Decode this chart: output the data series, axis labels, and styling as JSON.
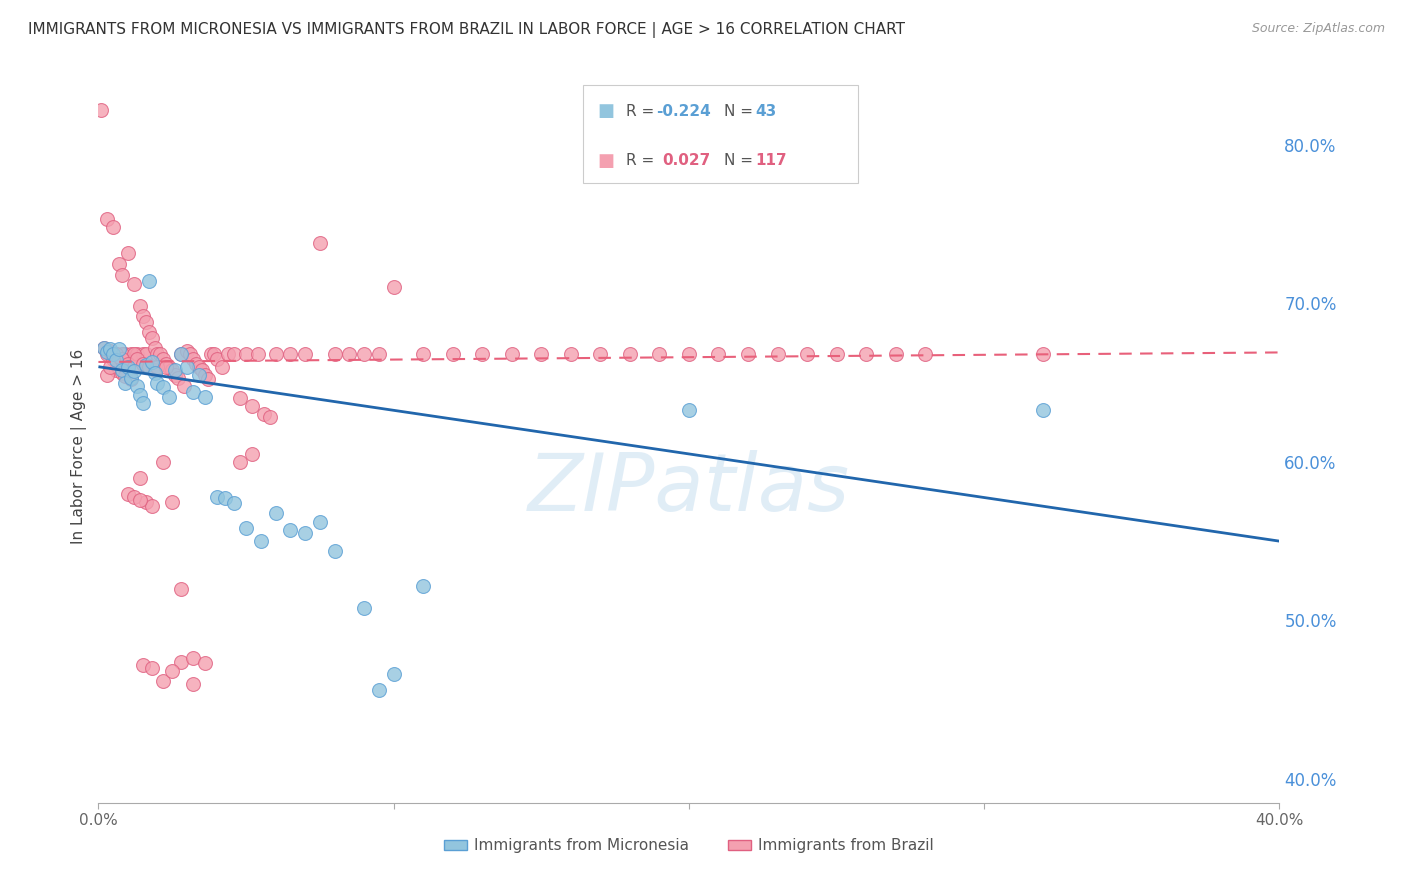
{
  "title": "IMMIGRANTS FROM MICRONESIA VS IMMIGRANTS FROM BRAZIL IN LABOR FORCE | AGE > 16 CORRELATION CHART",
  "source_text": "Source: ZipAtlas.com",
  "ylabel": "In Labor Force | Age > 16",
  "xlim": [
    0.0,
    0.4
  ],
  "ylim": [
    0.385,
    0.835
  ],
  "yticks": [
    0.4,
    0.5,
    0.6,
    0.7,
    0.8
  ],
  "xticks": [
    0.0,
    0.1,
    0.2,
    0.3,
    0.4
  ],
  "xtick_labels": [
    "0.0%",
    "",
    "",
    "",
    "40.0%"
  ],
  "ytick_labels": [
    "40.0%",
    "50.0%",
    "60.0%",
    "70.0%",
    "80.0%"
  ],
  "watermark": "ZIPatlas",
  "micronesia_color": "#92c5de",
  "brazil_color": "#f4a0b0",
  "micronesia_edge": "#5a9fd4",
  "brazil_edge": "#e06080",
  "micronesia_line_color": "#2166ac",
  "brazil_line_color": "#e8607a",
  "background_color": "#ffffff",
  "grid_color": "#cccccc",
  "right_axis_color": "#4a90d9",
  "micro_line_x": [
    0.0,
    0.4
  ],
  "micro_line_y": [
    0.66,
    0.55
  ],
  "brazil_line_x": [
    0.0,
    0.4
  ],
  "brazil_line_y": [
    0.663,
    0.669
  ],
  "micronesia_points": [
    [
      0.002,
      0.672
    ],
    [
      0.003,
      0.669
    ],
    [
      0.004,
      0.671
    ],
    [
      0.005,
      0.668
    ],
    [
      0.006,
      0.664
    ],
    [
      0.007,
      0.671
    ],
    [
      0.008,
      0.658
    ],
    [
      0.009,
      0.65
    ],
    [
      0.01,
      0.66
    ],
    [
      0.011,
      0.653
    ],
    [
      0.012,
      0.657
    ],
    [
      0.013,
      0.648
    ],
    [
      0.014,
      0.642
    ],
    [
      0.015,
      0.637
    ],
    [
      0.016,
      0.661
    ],
    [
      0.017,
      0.714
    ],
    [
      0.018,
      0.663
    ],
    [
      0.019,
      0.656
    ],
    [
      0.02,
      0.65
    ],
    [
      0.022,
      0.647
    ],
    [
      0.024,
      0.641
    ],
    [
      0.026,
      0.658
    ],
    [
      0.028,
      0.668
    ],
    [
      0.03,
      0.66
    ],
    [
      0.032,
      0.644
    ],
    [
      0.034,
      0.655
    ],
    [
      0.036,
      0.641
    ],
    [
      0.04,
      0.578
    ],
    [
      0.043,
      0.577
    ],
    [
      0.046,
      0.574
    ],
    [
      0.05,
      0.558
    ],
    [
      0.055,
      0.55
    ],
    [
      0.06,
      0.568
    ],
    [
      0.065,
      0.557
    ],
    [
      0.07,
      0.555
    ],
    [
      0.075,
      0.562
    ],
    [
      0.08,
      0.544
    ],
    [
      0.09,
      0.508
    ],
    [
      0.095,
      0.456
    ],
    [
      0.1,
      0.466
    ],
    [
      0.11,
      0.522
    ],
    [
      0.2,
      0.633
    ],
    [
      0.32,
      0.633
    ]
  ],
  "brazil_points": [
    [
      0.001,
      0.822
    ],
    [
      0.003,
      0.753
    ],
    [
      0.004,
      0.668
    ],
    [
      0.005,
      0.748
    ],
    [
      0.006,
      0.668
    ],
    [
      0.007,
      0.725
    ],
    [
      0.008,
      0.718
    ],
    [
      0.009,
      0.668
    ],
    [
      0.01,
      0.732
    ],
    [
      0.011,
      0.668
    ],
    [
      0.012,
      0.712
    ],
    [
      0.013,
      0.668
    ],
    [
      0.014,
      0.698
    ],
    [
      0.015,
      0.692
    ],
    [
      0.015,
      0.668
    ],
    [
      0.016,
      0.688
    ],
    [
      0.016,
      0.668
    ],
    [
      0.017,
      0.682
    ],
    [
      0.018,
      0.678
    ],
    [
      0.019,
      0.672
    ],
    [
      0.02,
      0.668
    ],
    [
      0.021,
      0.668
    ],
    [
      0.022,
      0.665
    ],
    [
      0.023,
      0.662
    ],
    [
      0.024,
      0.66
    ],
    [
      0.025,
      0.658
    ],
    [
      0.026,
      0.655
    ],
    [
      0.027,
      0.653
    ],
    [
      0.028,
      0.668
    ],
    [
      0.029,
      0.648
    ],
    [
      0.03,
      0.67
    ],
    [
      0.031,
      0.668
    ],
    [
      0.032,
      0.665
    ],
    [
      0.033,
      0.662
    ],
    [
      0.034,
      0.66
    ],
    [
      0.035,
      0.658
    ],
    [
      0.036,
      0.655
    ],
    [
      0.037,
      0.652
    ],
    [
      0.038,
      0.668
    ],
    [
      0.039,
      0.668
    ],
    [
      0.04,
      0.665
    ],
    [
      0.042,
      0.66
    ],
    [
      0.044,
      0.668
    ],
    [
      0.046,
      0.668
    ],
    [
      0.048,
      0.64
    ],
    [
      0.05,
      0.668
    ],
    [
      0.052,
      0.635
    ],
    [
      0.054,
      0.668
    ],
    [
      0.056,
      0.63
    ],
    [
      0.058,
      0.628
    ],
    [
      0.06,
      0.668
    ],
    [
      0.065,
      0.668
    ],
    [
      0.07,
      0.668
    ],
    [
      0.075,
      0.738
    ],
    [
      0.08,
      0.668
    ],
    [
      0.085,
      0.668
    ],
    [
      0.09,
      0.668
    ],
    [
      0.095,
      0.668
    ],
    [
      0.1,
      0.71
    ],
    [
      0.11,
      0.668
    ],
    [
      0.12,
      0.668
    ],
    [
      0.13,
      0.668
    ],
    [
      0.14,
      0.668
    ],
    [
      0.15,
      0.668
    ],
    [
      0.16,
      0.668
    ],
    [
      0.17,
      0.668
    ],
    [
      0.18,
      0.668
    ],
    [
      0.19,
      0.668
    ],
    [
      0.2,
      0.668
    ],
    [
      0.21,
      0.668
    ],
    [
      0.22,
      0.668
    ],
    [
      0.23,
      0.668
    ],
    [
      0.24,
      0.668
    ],
    [
      0.25,
      0.668
    ],
    [
      0.26,
      0.668
    ],
    [
      0.27,
      0.668
    ],
    [
      0.28,
      0.668
    ],
    [
      0.008,
      0.668
    ],
    [
      0.012,
      0.668
    ],
    [
      0.01,
      0.58
    ],
    [
      0.014,
      0.59
    ],
    [
      0.016,
      0.575
    ],
    [
      0.018,
      0.572
    ],
    [
      0.022,
      0.6
    ],
    [
      0.025,
      0.575
    ],
    [
      0.012,
      0.578
    ],
    [
      0.014,
      0.576
    ],
    [
      0.015,
      0.472
    ],
    [
      0.018,
      0.47
    ],
    [
      0.022,
      0.462
    ],
    [
      0.028,
      0.474
    ],
    [
      0.032,
      0.476
    ],
    [
      0.036,
      0.473
    ],
    [
      0.028,
      0.52
    ],
    [
      0.032,
      0.46
    ],
    [
      0.006,
      0.668
    ],
    [
      0.008,
      0.665
    ],
    [
      0.01,
      0.662
    ],
    [
      0.012,
      0.66
    ],
    [
      0.003,
      0.668
    ],
    [
      0.005,
      0.665
    ],
    [
      0.002,
      0.672
    ],
    [
      0.004,
      0.67
    ],
    [
      0.013,
      0.665
    ],
    [
      0.015,
      0.662
    ],
    [
      0.017,
      0.66
    ],
    [
      0.019,
      0.658
    ],
    [
      0.048,
      0.6
    ],
    [
      0.052,
      0.605
    ],
    [
      0.02,
      0.66
    ],
    [
      0.006,
      0.658
    ],
    [
      0.008,
      0.656
    ],
    [
      0.009,
      0.654
    ],
    [
      0.011,
      0.652
    ],
    [
      0.023,
      0.66
    ],
    [
      0.003,
      0.655
    ],
    [
      0.004,
      0.66
    ],
    [
      0.32,
      0.668
    ],
    [
      0.025,
      0.468
    ]
  ]
}
